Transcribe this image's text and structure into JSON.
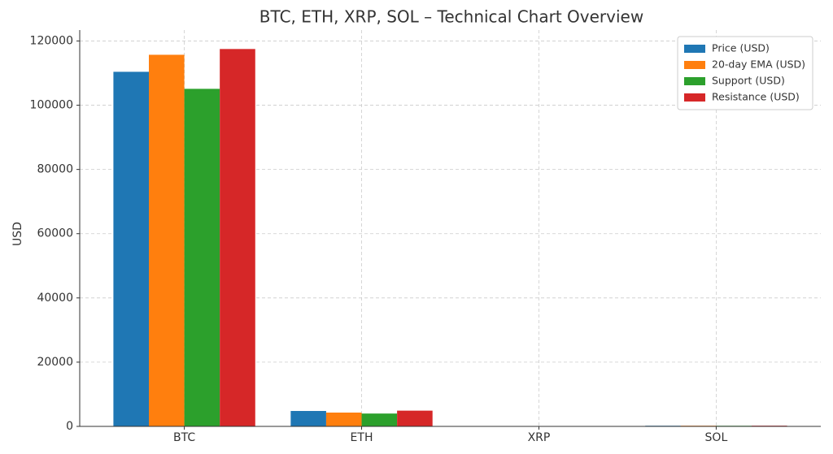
{
  "chart_data": {
    "type": "bar",
    "title": "BTC, ETH, XRP, SOL – Technical Chart Overview",
    "y_label": "USD",
    "categories": [
      "BTC",
      "ETH",
      "XRP",
      "SOL"
    ],
    "series": [
      {
        "name": "Price (USD)",
        "color": "#1f77b4",
        "values": [
          110400,
          4800,
          2.9,
          200
        ]
      },
      {
        "name": "20-day EMA (USD)",
        "color": "#ff7f0e",
        "values": [
          115700,
          4300,
          3.0,
          210
        ]
      },
      {
        "name": "Support (USD)",
        "color": "#2ca02c",
        "values": [
          105100,
          4000,
          2.8,
          190
        ]
      },
      {
        "name": "Resistance (USD)",
        "color": "#d62728",
        "values": [
          117500,
          4900,
          3.1,
          220
        ]
      }
    ],
    "ylim": [
      0,
      123400
    ],
    "yticks": [
      0,
      20000,
      40000,
      60000,
      80000,
      100000,
      120000
    ],
    "grid": true,
    "legend": "upper right"
  }
}
